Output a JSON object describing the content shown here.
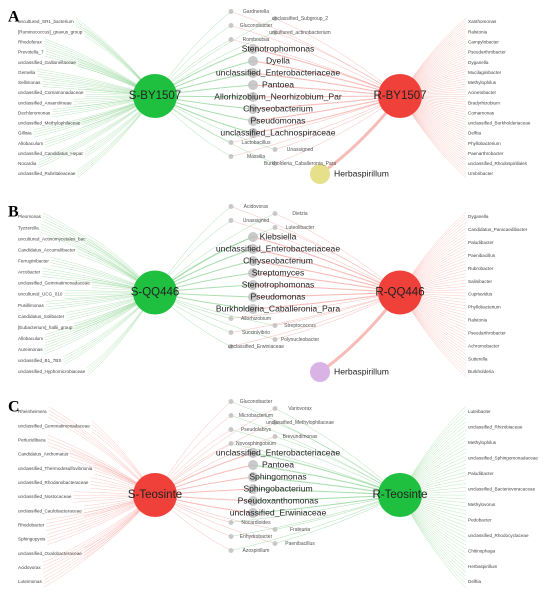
{
  "panels": [
    {
      "letter": "A",
      "hubs": [
        "S-BY1507",
        "R-BY1507"
      ],
      "hub_colors": [
        "#1fbf3f",
        "#f0403a"
      ],
      "edge_colors": [
        "#45b84f",
        "#ee6a62"
      ],
      "left_taxa": [
        "uncultured_SR1_bacterium",
        "[Ruminococcus]_gnavus_group",
        "Rhodoferax",
        "Prevotella_7",
        "unclassified_Gallionellaceae",
        "Gemella",
        "Sellimonas",
        "unclassified_Comamonadaceae",
        "unclassified_Anaerolineae",
        "Dechloromonas",
        "unclassified_Methylophilaceae",
        "Gillisia",
        "Allobaculum",
        "unclassified_Candidatus_Hepat",
        "Nocardia",
        "unclassified_Rubritaleaceae"
      ],
      "minor_taxa_top": [
        "Gardnerella",
        "unclassified_Subgroup_2",
        "Gluconobacter",
        "uncultured_actinobacterium",
        "Romboutsia"
      ],
      "prominent_taxa": [
        "Stenotrophomonas",
        "Dyella",
        "unclassified_Enterobacteriaceae",
        "Pantoea",
        "Allorhizobium_Neorhizobium_Par",
        "Chryseobacterium",
        "Pseudomonas",
        "unclassified_Lachnospiraceae"
      ],
      "minor_taxa_bottom": [
        "Lactobacillus",
        "Unassigned",
        "Massilia",
        "Burkholderia_Caballeronia_Para"
      ],
      "right_taxa": [
        "Xanthomonas",
        "Ralstonia",
        "Campylobacter",
        "Pseudarthrobacter",
        "Dyganella",
        "Mucilaginibacter",
        "Methylophilus",
        "Acinetobacter",
        "Bradyrhizobium",
        "Comamonas",
        "unclassified_Burkholderiaceae",
        "Delftia",
        "Phyllobacterium",
        "Paenarthrobacter",
        "unclassified_Rhodospirillales",
        "Umbribacter"
      ],
      "satellite": "Herbaspirillum",
      "satellite_color": "#e6e08a"
    },
    {
      "letter": "B",
      "hubs": [
        "S-QQ446",
        "R-QQ446"
      ],
      "hub_colors": [
        "#1fbf3f",
        "#f0403a"
      ],
      "edge_colors": [
        "#45b84f",
        "#ee6a62"
      ],
      "left_taxa": [
        "Pleomonas",
        "Tyzzerella",
        "uncultured_Actinomycetales_bac",
        "Candidatus_Accumulibacter",
        "Ferruginibacter",
        "Arcobacter",
        "unclassified_Gemmatimonadaceae",
        "uncultured_UCG_010",
        "Pusillimonas",
        "Candidatus_Solibacter",
        "[Eubacterium]_hallii_group",
        "Allobaculum",
        "Aureimonas",
        "unclassified_B1_7BS",
        "unclassified_Hyphomicrobiaceae"
      ],
      "minor_taxa_top": [
        "Acidovorax",
        "Dietzia",
        "Unassigned",
        "Luteolibacter"
      ],
      "prominent_taxa": [
        "Klebsiella",
        "unclassified_Enterobacteriaceae",
        "Chryseobacterium",
        "Streptomyces",
        "Stenotrophomonas",
        "Pseudomonas",
        "Burkholderia_Caballeronia_Para"
      ],
      "minor_taxa_bottom": [
        "Allorhizobium",
        "Streptococcus",
        "Succinivibrio",
        "Polynucleobacter",
        "unclassified_Erwiniaceae"
      ],
      "right_taxa": [
        "Dyganella",
        "Candidatus_Paracaedibacter",
        "Paludibacter",
        "Paenibacillus",
        "Rubrobacter",
        "Salinibacter",
        "Cupriavidus",
        "Phyllobacterium",
        "Ralstonia",
        "Pseudarthrobacter",
        "Achromobacter",
        "Sutterella",
        "Burkholderia"
      ],
      "satellite": "Herbaspirillum",
      "satellite_color": "#d9b3e6"
    },
    {
      "letter": "C",
      "hubs": [
        "S-Teosinte",
        "R-Teosinte"
      ],
      "hub_colors": [
        "#f0403a",
        "#1fbf3f"
      ],
      "edge_colors": [
        "#ee6a62",
        "#45b84f"
      ],
      "left_taxa": [
        "Rheinheimera",
        "unclassified_Gemmatimonadaceae",
        "Perlucidibaca",
        "Candidatus_Anthomatus",
        "unclassified_Thermodesulfovibrionia",
        "unclassified_Rhodanobacteraceae",
        "unclassified_Nostocaceae",
        "unclassified_Caulobacteraceae",
        "Rhodobacter",
        "Sphingopyxis",
        "unclassified_Oxalobacteraceae",
        "Acidovorax",
        "Luteimonas"
      ],
      "minor_taxa_top": [
        "Gluconobacter",
        "Variovorax",
        "Microbacterium",
        "unclassified_Methylophilaceae",
        "Pseudolabrys",
        "Brevundimonas",
        "Novosphingobium"
      ],
      "prominent_taxa": [
        "unclassified_Enterobacteriaceae",
        "Pantoea",
        "Sphingomonas",
        "Sphingobacterium",
        "Pseudoxanthomonas",
        "unclassified_Erwiniaceae"
      ],
      "minor_taxa_bottom": [
        "Nocardioides",
        "Frateuria",
        "Enhydrobacter",
        "Paenibacillus",
        "Azospirillum"
      ],
      "right_taxa": [
        "Luteibacter",
        "unclassified_Rhizobiaceae",
        "Methylophilus",
        "unclassified_Sphingomonadaceae",
        "Paludibacter",
        "unclassified_Bacteriovoracaceae",
        "Methylovorus",
        "Pedobacter",
        "unclassified_Rhodocyclaceae",
        "Chitinophaga",
        "Herbaspirillum",
        "Delftia"
      ]
    }
  ]
}
